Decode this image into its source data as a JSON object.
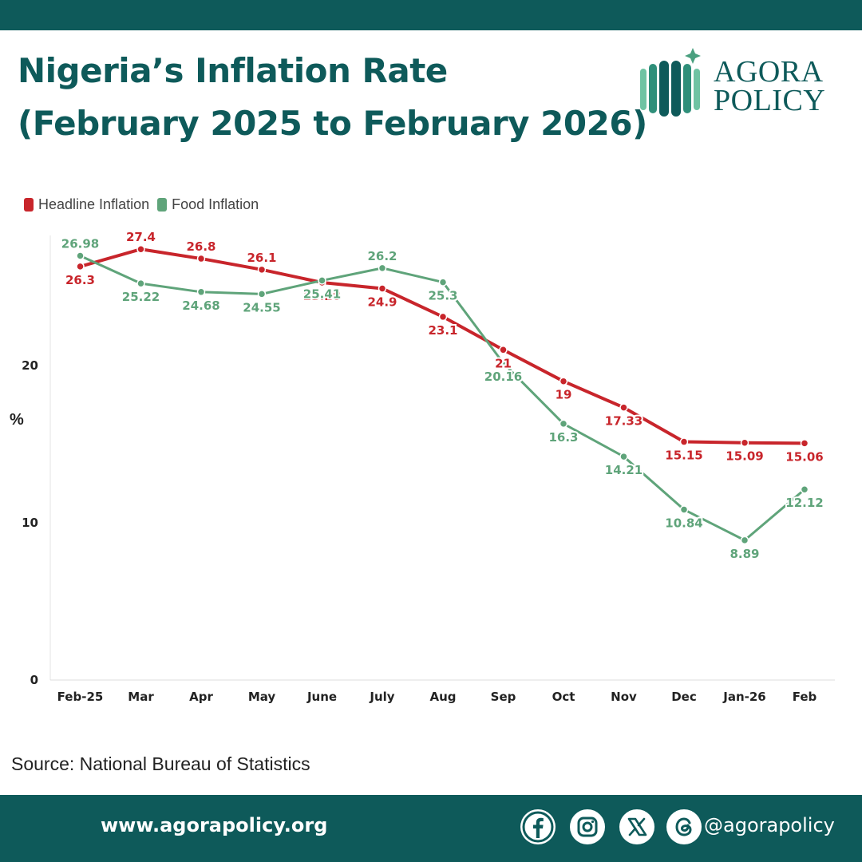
{
  "header": {
    "title_line1": "Nigeria’s Inflation Rate",
    "title_line2": "(February 2025 to February 2026)"
  },
  "logo": {
    "line1": "AGORA",
    "line2": "POLICY",
    "icon": "agora-policy-logo-icon"
  },
  "colors": {
    "brand": "#0e5a5a",
    "headline": "#c8252b",
    "food": "#5fa47a"
  },
  "chart_data": {
    "type": "line",
    "title": "Nigeria’s Inflation Rate (February 2025 to February 2026)",
    "xlabel": "",
    "ylabel": "%",
    "categories": [
      "Feb-25",
      "Mar",
      "Apr",
      "May",
      "June",
      "July",
      "Aug",
      "Sep",
      "Oct",
      "Nov",
      "Dec",
      "Jan-26",
      "Feb"
    ],
    "yticks": [
      0,
      10,
      20
    ],
    "ylim": [
      0,
      28
    ],
    "grid": false,
    "legend_position": "top-left",
    "series": [
      {
        "name": "Headline Inflation",
        "color": "#c8252b",
        "values": [
          26.3,
          27.4,
          26.8,
          26.1,
          25.28,
          24.9,
          23.1,
          21,
          19,
          17.33,
          15.15,
          15.09,
          15.06
        ],
        "labels": [
          "26.3",
          "27.4",
          "26.8",
          "26.1",
          "25.28",
          "24.9",
          "23.1",
          "21",
          "19",
          "17.33",
          "15.15",
          "15.09",
          "15.06"
        ]
      },
      {
        "name": "Food Inflation",
        "color": "#5fa47a",
        "values": [
          26.98,
          25.22,
          24.68,
          24.55,
          25.41,
          26.2,
          25.3,
          20.16,
          16.3,
          14.21,
          10.84,
          8.89,
          12.12
        ],
        "labels": [
          "26.98",
          "25.22",
          "24.68",
          "24.55",
          "25.41",
          "26.2",
          "25.3",
          "20.16",
          "16.3",
          "14.21",
          "10.84",
          "8.89",
          "12.12"
        ]
      }
    ]
  },
  "source": "Source: National Bureau of Statistics",
  "footer": {
    "url": "www.agorapolicy.org",
    "handle": "@agorapolicy",
    "icons": [
      "facebook-icon",
      "instagram-icon",
      "x-icon",
      "threads-icon"
    ]
  }
}
